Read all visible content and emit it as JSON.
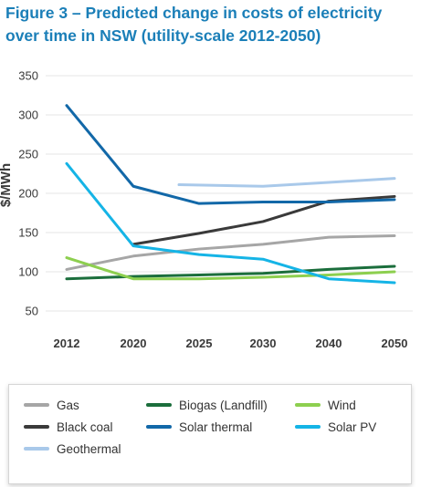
{
  "title_line1": "Figure 3 – Predicted change in costs of electricity",
  "title_line2": "over time in NSW (utility-scale 2012-2050)",
  "chart_data": {
    "type": "line",
    "title": "Figure 3 – Predicted change in costs of electricity over time in NSW (utility-scale 2012-2050)",
    "xlabel": "",
    "ylabel": "$/MWh",
    "categories": [
      "2012",
      "2020",
      "2025",
      "2030",
      "2040",
      "2050"
    ],
    "yticks": [
      50,
      100,
      150,
      200,
      250,
      300,
      350
    ],
    "ylim": [
      50,
      350
    ],
    "grid": true,
    "legend_position": "bottom",
    "series": [
      {
        "name": "Gas",
        "color": "#a6a6a6",
        "values": [
          103,
          120,
          129,
          135,
          144,
          146
        ]
      },
      {
        "name": "Black coal",
        "color": "#3a3a3a",
        "values": [
          null,
          135,
          149,
          164,
          190,
          196
        ]
      },
      {
        "name": "Geothermal",
        "color": "#a9c9ea",
        "values": [
          null,
          null,
          211,
          209,
          214,
          219
        ]
      },
      {
        "name": "Biogas (Landfill)",
        "color": "#1b6e3c",
        "values": [
          91,
          94,
          96,
          98,
          103,
          107
        ]
      },
      {
        "name": "Solar thermal",
        "color": "#1268a8",
        "values": [
          312,
          209,
          187,
          189,
          189,
          192
        ]
      },
      {
        "name": "Wind",
        "color": "#8dcf4f",
        "values": [
          118,
          91,
          91,
          93,
          96,
          100
        ]
      },
      {
        "name": "Solar PV",
        "color": "#15b4e6",
        "values": [
          238,
          133,
          122,
          116,
          91,
          86
        ]
      }
    ]
  },
  "legend": {
    "items": [
      {
        "label": "Gas",
        "color": "#a6a6a6"
      },
      {
        "label": "Biogas (Landfill)",
        "color": "#1b6e3c"
      },
      {
        "label": "Wind",
        "color": "#8dcf4f"
      },
      {
        "label": "Black coal",
        "color": "#3a3a3a"
      },
      {
        "label": "Solar thermal",
        "color": "#1268a8"
      },
      {
        "label": "Solar PV",
        "color": "#15b4e6"
      },
      {
        "label": "Geothermal",
        "color": "#a9c9ea"
      }
    ]
  }
}
